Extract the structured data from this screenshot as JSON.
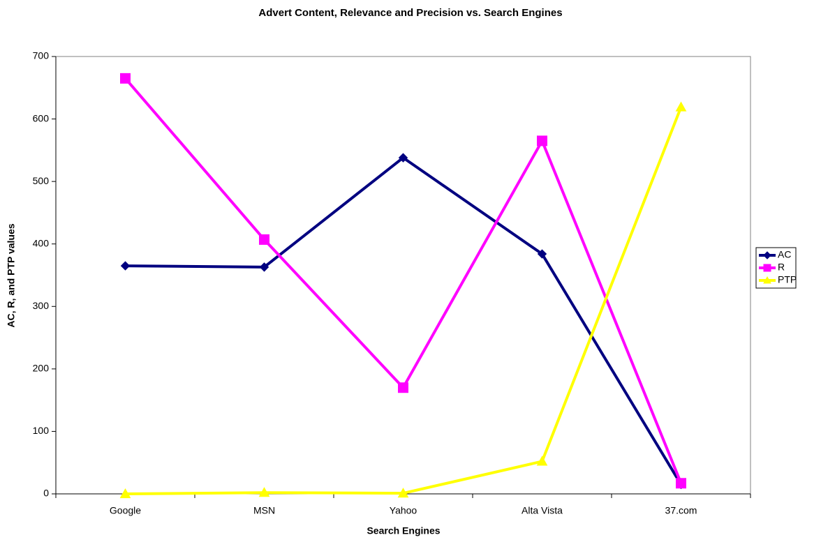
{
  "chart_data": {
    "type": "line",
    "title": "Advert Content, Relevance and Precision vs. Search Engines",
    "x_label": "Search Engines",
    "y_label": "AC, R, and PTP values",
    "categories": [
      "Google",
      "MSN",
      "Yahoo",
      "Alta Vista",
      "37.com"
    ],
    "series": [
      {
        "name": "AC",
        "color": "#000080",
        "marker": "diamond",
        "values": [
          365,
          363,
          538,
          384,
          15
        ]
      },
      {
        "name": "R",
        "color": "#ff00ff",
        "marker": "square",
        "values": [
          665,
          407,
          170,
          565,
          17
        ]
      },
      {
        "name": "PTP",
        "color": "#ffff00",
        "marker": "triangle",
        "values": [
          0,
          2,
          1,
          52,
          619
        ]
      }
    ],
    "ylim": [
      0,
      700
    ],
    "yticks": [
      0,
      100,
      200,
      300,
      400,
      500,
      600,
      700
    ],
    "grid": false,
    "legend": "right"
  }
}
